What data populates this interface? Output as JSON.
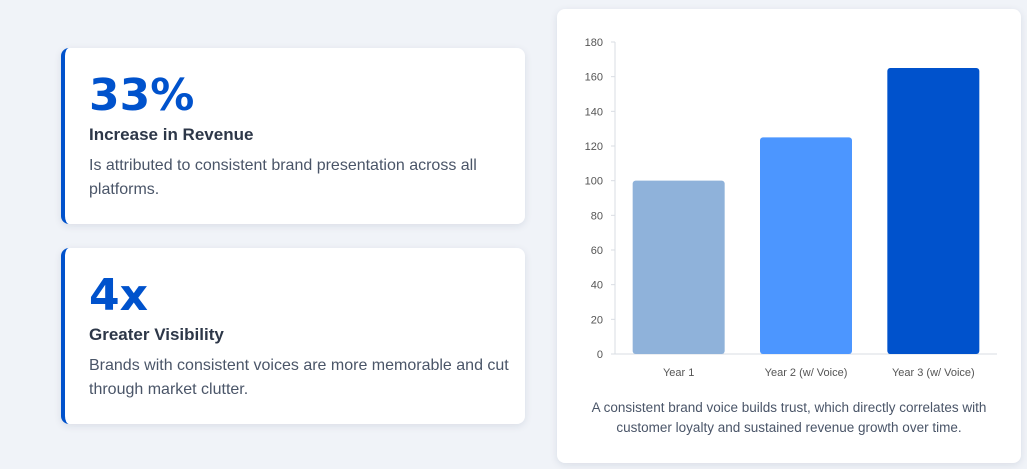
{
  "stats": [
    {
      "value": "33%",
      "label": "Increase in Revenue",
      "description": "Is attributed to consistent brand presentation across all platforms."
    },
    {
      "value": "4x",
      "label": "Greater Visibility",
      "description": "Brands with consistent voices are more memorable and cut through market clutter."
    }
  ],
  "chart_caption": "A consistent brand voice builds trust, which directly correlates with customer loyalty and sustained revenue growth over time.",
  "colors": {
    "accent": "#0052cc",
    "bar_year1": "#8fb2da",
    "bar_year2": "#4c96ff",
    "bar_year3": "#0052cc"
  },
  "chart_data": {
    "type": "bar",
    "categories": [
      "Year 1",
      "Year 2 (w/ Voice)",
      "Year 3 (w/ Voice)"
    ],
    "values": [
      100,
      125,
      165
    ],
    "bar_colors": [
      "#8fb2da",
      "#4c96ff",
      "#0052cc"
    ],
    "title": "",
    "xlabel": "",
    "ylabel": "",
    "ylim": [
      0,
      180
    ],
    "yticks": [
      "0",
      "20",
      "40",
      "60",
      "80",
      "100",
      "120",
      "140",
      "160",
      "180"
    ],
    "grid": false,
    "legend": "none"
  }
}
